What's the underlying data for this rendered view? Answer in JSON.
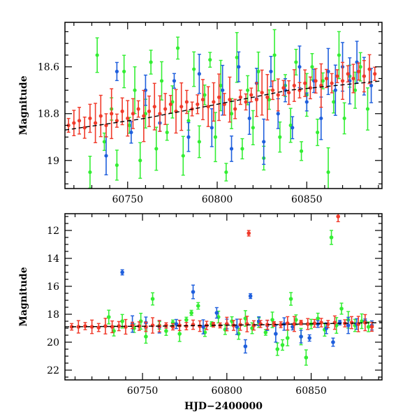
{
  "chart_data": [
    {
      "type": "scatter",
      "title": "",
      "xlabel": "",
      "ylabel": "Magnitude",
      "xlim": [
        60715,
        60892
      ],
      "ylim": [
        19.12,
        18.41
      ],
      "y_inverted": true,
      "grid": false,
      "xticks": [
        60750,
        60800,
        60850
      ],
      "yticks": [
        18.6,
        18.8,
        19
      ],
      "ytick_labels": [
        "18.6",
        "18.8",
        "19"
      ],
      "series": [
        {
          "color": "#33ee33",
          "points": [
            [
              60729,
              19.05
            ],
            [
              60733,
              18.55
            ],
            [
              60737,
              18.92
            ],
            [
              60741,
              18.78
            ],
            [
              60744,
              19.02
            ],
            [
              60748,
              18.62
            ],
            [
              60751,
              18.85
            ],
            [
              60754,
              18.7
            ],
            [
              60757,
              19.0
            ],
            [
              60760,
              18.8
            ],
            [
              60763,
              18.58
            ],
            [
              60766,
              18.95
            ],
            [
              60769,
              18.66
            ],
            [
              60772,
              18.88
            ],
            [
              60775,
              18.75
            ],
            [
              60778,
              18.52
            ],
            [
              60781,
              18.98
            ],
            [
              60784,
              18.83
            ],
            [
              60787,
              18.61
            ],
            [
              60790,
              18.92
            ],
            [
              60793,
              18.72
            ],
            [
              60796,
              18.57
            ],
            [
              60799,
              18.9
            ],
            [
              60802,
              18.68
            ],
            [
              60805,
              19.05
            ],
            [
              60808,
              18.8
            ],
            [
              60811,
              18.56
            ],
            [
              60814,
              18.95
            ],
            [
              60817,
              18.7
            ],
            [
              60820,
              18.86
            ],
            [
              60823,
              18.62
            ],
            [
              60826,
              18.99
            ],
            [
              60829,
              18.74
            ],
            [
              60832,
              18.55
            ],
            [
              60835,
              18.9
            ],
            [
              60838,
              18.68
            ],
            [
              60841,
              18.85
            ],
            [
              60844,
              18.58
            ],
            [
              60847,
              18.96
            ],
            [
              60850,
              18.72
            ],
            [
              60853,
              18.6
            ],
            [
              60856,
              18.88
            ],
            [
              60859,
              18.66
            ],
            [
              60862,
              19.05
            ],
            [
              60865,
              18.75
            ],
            [
              60868,
              18.55
            ],
            [
              60871,
              18.82
            ],
            [
              60874,
              18.64
            ],
            [
              60877,
              18.7
            ],
            [
              60880,
              18.6
            ],
            [
              60884,
              18.78
            ]
          ]
        },
        {
          "color": "#1f5fdd",
          "points": [
            [
              60738,
              18.98
            ],
            [
              60744,
              18.62
            ],
            [
              60752,
              18.88
            ],
            [
              60760,
              18.7
            ],
            [
              60768,
              18.84
            ],
            [
              60776,
              18.66
            ],
            [
              60784,
              18.9
            ],
            [
              60790,
              18.63
            ],
            [
              60797,
              18.86
            ],
            [
              60803,
              18.7
            ],
            [
              60808,
              18.95
            ],
            [
              60812,
              18.6
            ],
            [
              60818,
              18.82
            ],
            [
              60822,
              18.67
            ],
            [
              60826,
              18.92
            ],
            [
              60830,
              18.62
            ],
            [
              60834,
              18.8
            ],
            [
              60838,
              18.7
            ],
            [
              60842,
              18.86
            ],
            [
              60846,
              18.6
            ],
            [
              60850,
              18.75
            ],
            [
              60854,
              18.66
            ],
            [
              60858,
              18.82
            ],
            [
              60862,
              18.62
            ],
            [
              60866,
              18.7
            ],
            [
              60870,
              18.6
            ],
            [
              60874,
              18.66
            ],
            [
              60878,
              18.58
            ],
            [
              60882,
              18.64
            ],
            [
              60886,
              18.68
            ]
          ]
        },
        {
          "color": "#f03a2a",
          "points": [
            [
              60717,
              18.85
            ],
            [
              60720,
              18.84
            ],
            [
              60723,
              18.83
            ],
            [
              60726,
              18.86
            ],
            [
              60729,
              18.82
            ],
            [
              60732,
              18.84
            ],
            [
              60735,
              18.81
            ],
            [
              60738,
              18.85
            ],
            [
              60741,
              18.8
            ],
            [
              60744,
              18.83
            ],
            [
              60747,
              18.79
            ],
            [
              60750,
              18.82
            ],
            [
              60753,
              18.8
            ],
            [
              60756,
              18.78
            ],
            [
              60759,
              18.81
            ],
            [
              60762,
              18.79
            ],
            [
              60765,
              18.77
            ],
            [
              60768,
              18.8
            ],
            [
              60771,
              18.78
            ],
            [
              60774,
              18.76
            ],
            [
              60777,
              18.79
            ],
            [
              60780,
              18.77
            ],
            [
              60783,
              18.75
            ],
            [
              60786,
              18.78
            ],
            [
              60789,
              18.76
            ],
            [
              60792,
              18.74
            ],
            [
              60795,
              18.77
            ],
            [
              60798,
              18.75
            ],
            [
              60801,
              18.73
            ],
            [
              60804,
              18.76
            ],
            [
              60807,
              18.74
            ],
            [
              60810,
              18.78
            ],
            [
              60813,
              18.73
            ],
            [
              60816,
              18.75
            ],
            [
              60819,
              18.72
            ],
            [
              60822,
              18.74
            ],
            [
              60825,
              18.71
            ],
            [
              60828,
              18.73
            ],
            [
              60831,
              18.7
            ],
            [
              60834,
              18.72
            ],
            [
              60837,
              18.69
            ],
            [
              60840,
              18.71
            ],
            [
              60843,
              18.68
            ],
            [
              60846,
              18.7
            ],
            [
              60849,
              18.67
            ],
            [
              60852,
              18.69
            ],
            [
              60855,
              18.66
            ],
            [
              60858,
              18.68
            ],
            [
              60861,
              18.65
            ],
            [
              60864,
              18.67
            ],
            [
              60867,
              18.64
            ],
            [
              60870,
              18.66
            ],
            [
              60873,
              18.63
            ],
            [
              60876,
              18.65
            ],
            [
              60879,
              18.62
            ],
            [
              60882,
              18.64
            ],
            [
              60885,
              18.61
            ],
            [
              60888,
              18.63
            ]
          ]
        }
      ],
      "trend": [
        [
          60715,
          18.87
        ],
        [
          60760,
          18.82
        ],
        [
          60800,
          18.76
        ],
        [
          60840,
          18.7
        ],
        [
          60892,
          18.66
        ]
      ]
    },
    {
      "type": "scatter",
      "title": "",
      "xlabel": "HJD−2400000",
      "ylabel": "Magnitude",
      "xlim": [
        60704,
        60892
      ],
      "ylim": [
        22.7,
        10.8
      ],
      "y_inverted": true,
      "grid": false,
      "xticks": [
        60750,
        60800,
        60850
      ],
      "yticks": [
        12,
        14,
        16,
        18,
        20,
        22
      ],
      "ytick_labels": [
        "12",
        "14",
        "16",
        "18",
        "20",
        "22"
      ],
      "series": [
        {
          "color": "#33ee33",
          "points": [
            [
              60730,
              18.2
            ],
            [
              60733,
              19.2
            ],
            [
              60738,
              18.5
            ],
            [
              60745,
              19.0
            ],
            [
              60749,
              18.5
            ],
            [
              60752,
              19.6
            ],
            [
              60756,
              16.9
            ],
            [
              60760,
              18.8
            ],
            [
              60764,
              19.2
            ],
            [
              60768,
              18.6
            ],
            [
              60772,
              19.4
            ],
            [
              60776,
              18.4
            ],
            [
              60779,
              17.9
            ],
            [
              60783,
              17.4
            ],
            [
              60787,
              19.3
            ],
            [
              60791,
              18.7
            ],
            [
              60795,
              18.2
            ],
            [
              60799,
              19.1
            ],
            [
              60803,
              18.5
            ],
            [
              60807,
              19.4
            ],
            [
              60811,
              18.3
            ],
            [
              60815,
              19.0
            ],
            [
              60819,
              18.6
            ],
            [
              60823,
              19.3
            ],
            [
              60827,
              18.4
            ],
            [
              60830,
              20.5
            ],
            [
              60833,
              20.2
            ],
            [
              60836,
              19.7
            ],
            [
              60838,
              16.9
            ],
            [
              60841,
              18.4
            ],
            [
              60844,
              19.6
            ],
            [
              60847,
              21.1
            ],
            [
              60850,
              18.7
            ],
            [
              60854,
              18.3
            ],
            [
              60858,
              19.1
            ],
            [
              60862,
              12.5
            ],
            [
              60865,
              18.8
            ],
            [
              60868,
              17.6
            ],
            [
              60872,
              18.4
            ],
            [
              60876,
              18.8
            ],
            [
              60880,
              18.5
            ],
            [
              60884,
              18.9
            ]
          ]
        },
        {
          "color": "#1f5fdd",
          "points": [
            [
              60738,
              15.0
            ],
            [
              60744,
              18.7
            ],
            [
              60752,
              18.6
            ],
            [
              60760,
              18.9
            ],
            [
              60770,
              18.7
            ],
            [
              60780,
              16.4
            ],
            [
              60786,
              18.9
            ],
            [
              60794,
              17.9
            ],
            [
              60800,
              18.7
            ],
            [
              60806,
              18.9
            ],
            [
              60811,
              20.3
            ],
            [
              60814,
              16.7
            ],
            [
              60819,
              18.5
            ],
            [
              60824,
              18.8
            ],
            [
              60829,
              19.4
            ],
            [
              60834,
              18.7
            ],
            [
              60839,
              18.9
            ],
            [
              60844,
              19.6
            ],
            [
              60849,
              19.7
            ],
            [
              60854,
              18.7
            ],
            [
              60859,
              19.0
            ],
            [
              60863,
              20.0
            ],
            [
              60867,
              18.6
            ],
            [
              60872,
              18.8
            ],
            [
              60877,
              18.7
            ],
            [
              60882,
              18.5
            ],
            [
              60886,
              18.8
            ]
          ]
        },
        {
          "color": "#f03a2a",
          "points": [
            [
              60708,
              18.9
            ],
            [
              60712,
              18.9
            ],
            [
              60716,
              18.85
            ],
            [
              60720,
              18.9
            ],
            [
              60724,
              18.95
            ],
            [
              60728,
              18.85
            ],
            [
              60732,
              18.9
            ],
            [
              60736,
              18.85
            ],
            [
              60740,
              18.9
            ],
            [
              60744,
              18.8
            ],
            [
              60748,
              18.85
            ],
            [
              60752,
              18.9
            ],
            [
              60756,
              18.8
            ],
            [
              60760,
              18.85
            ],
            [
              60764,
              18.8
            ],
            [
              60768,
              18.9
            ],
            [
              60772,
              18.8
            ],
            [
              60776,
              18.85
            ],
            [
              60780,
              18.75
            ],
            [
              60784,
              18.85
            ],
            [
              60788,
              18.8
            ],
            [
              60792,
              18.75
            ],
            [
              60796,
              18.8
            ],
            [
              60800,
              18.7
            ],
            [
              60804,
              18.8
            ],
            [
              60808,
              18.75
            ],
            [
              60812,
              18.7
            ],
            [
              60813,
              12.2
            ],
            [
              60816,
              18.8
            ],
            [
              60820,
              18.7
            ],
            [
              60824,
              18.75
            ],
            [
              60828,
              18.7
            ],
            [
              60832,
              18.75
            ],
            [
              60836,
              18.65
            ],
            [
              60840,
              18.7
            ],
            [
              60844,
              18.6
            ],
            [
              60848,
              18.7
            ],
            [
              60852,
              18.65
            ],
            [
              60856,
              18.6
            ],
            [
              60860,
              18.7
            ],
            [
              60864,
              18.6
            ],
            [
              60866,
              11.0
            ],
            [
              60870,
              18.65
            ],
            [
              60874,
              18.6
            ],
            [
              60878,
              18.7
            ],
            [
              60882,
              18.6
            ],
            [
              60886,
              18.9
            ]
          ]
        }
      ],
      "trend": [
        [
          60704,
          18.9
        ],
        [
          60760,
          18.85
        ],
        [
          60820,
          18.75
        ],
        [
          60892,
          18.6
        ]
      ]
    }
  ]
}
